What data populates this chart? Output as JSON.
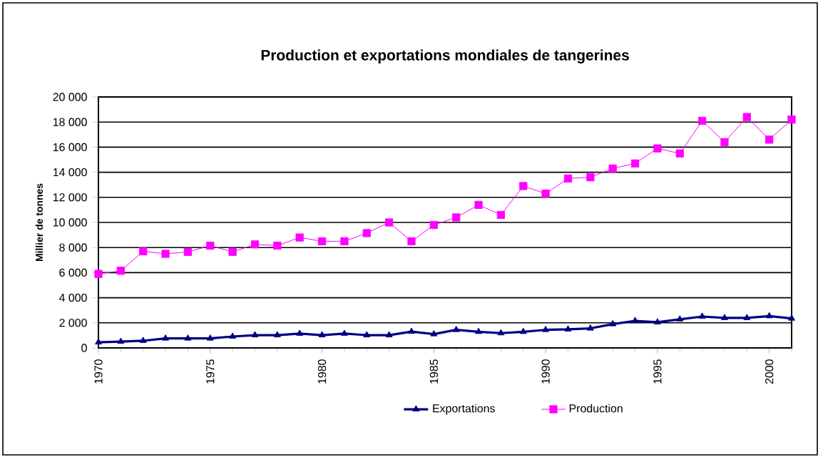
{
  "chart_data": {
    "type": "line",
    "title": "Production et exportations mondiales de tangerines",
    "ylabel": "Millier de tonnes",
    "x": [
      1970,
      1971,
      1972,
      1973,
      1974,
      1975,
      1976,
      1977,
      1978,
      1979,
      1980,
      1981,
      1982,
      1983,
      1984,
      1985,
      1986,
      1987,
      1988,
      1989,
      1990,
      1991,
      1992,
      1993,
      1994,
      1995,
      1996,
      1997,
      1998,
      1999,
      2000,
      2001
    ],
    "series": [
      {
        "name": "Exportations",
        "color": "#000080",
        "marker": "triangle",
        "values": [
          450,
          500,
          570,
          760,
          760,
          760,
          910,
          1020,
          1020,
          1140,
          1020,
          1140,
          1020,
          1020,
          1300,
          1100,
          1440,
          1290,
          1180,
          1290,
          1440,
          1480,
          1560,
          1900,
          2160,
          2050,
          2280,
          2500,
          2390,
          2390,
          2540,
          2350
        ]
      },
      {
        "name": "Production",
        "color": "#ff00ff",
        "marker": "square",
        "values": [
          5900,
          6150,
          7700,
          7500,
          7650,
          8150,
          7650,
          8250,
          8150,
          8800,
          8500,
          8500,
          9150,
          10000,
          8500,
          9800,
          10400,
          11400,
          10600,
          12900,
          12300,
          13500,
          13600,
          14300,
          14700,
          15900,
          15500,
          18100,
          16400,
          18400,
          16600,
          18200
        ]
      }
    ],
    "xlim": [
      1970,
      2001
    ],
    "ylim": [
      0,
      20000
    ],
    "xticks": [
      1970,
      1975,
      1980,
      1985,
      1990,
      1995,
      2000
    ],
    "yticks": [
      0,
      {
        "value": 2000,
        "label": "2 000"
      },
      {
        "value": 4000,
        "label": "4 000"
      },
      {
        "value": 6000,
        "label": "6 000"
      },
      {
        "value": 8000,
        "label": "8 000"
      },
      {
        "value": 10000,
        "label": "10 000"
      },
      {
        "value": 12000,
        "label": "12 000"
      },
      {
        "value": 14000,
        "label": "14 000"
      },
      {
        "value": 16000,
        "label": "16 000"
      },
      {
        "value": 18000,
        "label": "18 000"
      },
      {
        "value": 20000,
        "label": "20 000"
      }
    ],
    "grid": "y",
    "legend": "bottom"
  }
}
